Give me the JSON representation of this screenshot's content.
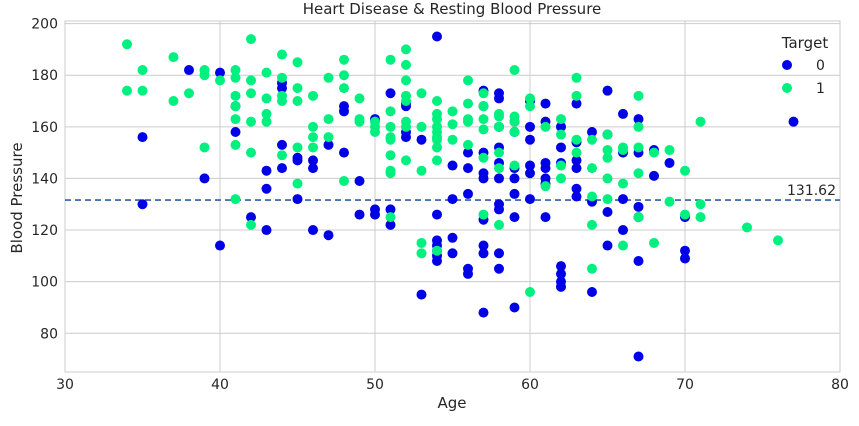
{
  "chart_data": {
    "type": "scatter",
    "title": "Heart Disease & Resting Blood Pressure",
    "xlabel": "Age",
    "ylabel": "Blood Pressure",
    "xlim": [
      30,
      80
    ],
    "ylim": [
      65,
      201
    ],
    "xticks": [
      30,
      40,
      50,
      60,
      70,
      80
    ],
    "yticks": [
      80,
      100,
      120,
      140,
      160,
      180,
      200
    ],
    "grid": true,
    "legend": {
      "title": "Target",
      "placement": "top-right"
    },
    "reference_line": {
      "y": 131.62,
      "label": "131.62",
      "style": "dashed",
      "color": "#4c72b0"
    },
    "series": [
      {
        "name": "0",
        "color": "#0000e6",
        "points": [
          [
            35,
            156
          ],
          [
            35,
            130
          ],
          [
            38,
            182
          ],
          [
            39,
            140
          ],
          [
            40,
            114
          ],
          [
            40,
            181
          ],
          [
            41,
            158
          ],
          [
            41,
            168
          ],
          [
            42,
            125
          ],
          [
            43,
            143
          ],
          [
            43,
            136
          ],
          [
            43,
            120
          ],
          [
            44,
            153
          ],
          [
            44,
            144
          ],
          [
            44,
            177
          ],
          [
            44,
            175
          ],
          [
            45,
            148
          ],
          [
            45,
            132
          ],
          [
            45,
            147
          ],
          [
            46,
            144
          ],
          [
            46,
            147
          ],
          [
            46,
            120
          ],
          [
            47,
            153
          ],
          [
            47,
            118
          ],
          [
            48,
            168
          ],
          [
            48,
            166
          ],
          [
            48,
            150
          ],
          [
            49,
            139
          ],
          [
            49,
            126
          ],
          [
            50,
            128
          ],
          [
            50,
            126
          ],
          [
            50,
            163
          ],
          [
            51,
            122
          ],
          [
            51,
            173
          ],
          [
            51,
            128
          ],
          [
            52,
            168
          ],
          [
            52,
            156
          ],
          [
            52,
            169
          ],
          [
            52,
            158
          ],
          [
            53,
            95
          ],
          [
            53,
            155
          ],
          [
            54,
            195
          ],
          [
            54,
            126
          ],
          [
            54,
            116
          ],
          [
            54,
            114
          ],
          [
            54,
            112
          ],
          [
            54,
            110
          ],
          [
            54,
            108
          ],
          [
            55,
            132
          ],
          [
            55,
            145
          ],
          [
            55,
            117
          ],
          [
            55,
            111
          ],
          [
            56,
            150
          ],
          [
            56,
            144
          ],
          [
            56,
            134
          ],
          [
            56,
            105
          ],
          [
            56,
            103
          ],
          [
            57,
            174
          ],
          [
            57,
            168
          ],
          [
            57,
            150
          ],
          [
            57,
            142
          ],
          [
            57,
            140
          ],
          [
            57,
            124
          ],
          [
            57,
            114
          ],
          [
            57,
            111
          ],
          [
            57,
            88
          ],
          [
            58,
            173
          ],
          [
            58,
            171
          ],
          [
            58,
            160
          ],
          [
            58,
            152
          ],
          [
            58,
            146
          ],
          [
            58,
            140
          ],
          [
            58,
            130
          ],
          [
            58,
            128
          ],
          [
            58,
            111
          ],
          [
            58,
            105
          ],
          [
            59,
            162
          ],
          [
            59,
            158
          ],
          [
            59,
            144
          ],
          [
            59,
            140
          ],
          [
            59,
            134
          ],
          [
            59,
            125
          ],
          [
            59,
            90
          ],
          [
            60,
            170
          ],
          [
            60,
            160
          ],
          [
            60,
            155
          ],
          [
            60,
            145
          ],
          [
            60,
            142
          ],
          [
            60,
            132
          ],
          [
            61,
            169
          ],
          [
            61,
            162
          ],
          [
            61,
            146
          ],
          [
            61,
            144
          ],
          [
            61,
            140
          ],
          [
            61,
            138
          ],
          [
            61,
            125
          ],
          [
            62,
            160
          ],
          [
            62,
            152
          ],
          [
            62,
            146
          ],
          [
            62,
            106
          ],
          [
            62,
            103
          ],
          [
            62,
            100
          ],
          [
            62,
            98
          ],
          [
            63,
            169
          ],
          [
            63,
            154
          ],
          [
            63,
            147
          ],
          [
            63,
            144
          ],
          [
            63,
            136
          ],
          [
            63,
            133
          ],
          [
            64,
            158
          ],
          [
            64,
            131
          ],
          [
            64,
            96
          ],
          [
            65,
            174
          ],
          [
            65,
            157
          ],
          [
            65,
            127
          ],
          [
            65,
            114
          ],
          [
            66,
            165
          ],
          [
            66,
            150
          ],
          [
            66,
            132
          ],
          [
            66,
            120
          ],
          [
            67,
            163
          ],
          [
            67,
            150
          ],
          [
            67,
            125
          ],
          [
            67,
            129
          ],
          [
            67,
            108
          ],
          [
            67,
            71
          ],
          [
            68,
            141
          ],
          [
            68,
            151
          ],
          [
            69,
            146
          ],
          [
            70,
            125
          ],
          [
            70,
            112
          ],
          [
            70,
            109
          ],
          [
            77,
            162
          ]
        ]
      },
      {
        "name": "1",
        "color": "#00f080",
        "points": [
          [
            34,
            192
          ],
          [
            34,
            174
          ],
          [
            35,
            182
          ],
          [
            35,
            174
          ],
          [
            37,
            187
          ],
          [
            37,
            170
          ],
          [
            38,
            173
          ],
          [
            39,
            182
          ],
          [
            39,
            152
          ],
          [
            39,
            180
          ],
          [
            40,
            178
          ],
          [
            41,
            182
          ],
          [
            41,
            179
          ],
          [
            41,
            172
          ],
          [
            41,
            168
          ],
          [
            41,
            163
          ],
          [
            41,
            153
          ],
          [
            41,
            132
          ],
          [
            42,
            194
          ],
          [
            42,
            178
          ],
          [
            42,
            173
          ],
          [
            42,
            162
          ],
          [
            42,
            150
          ],
          [
            42,
            122
          ],
          [
            43,
            181
          ],
          [
            43,
            171
          ],
          [
            43,
            165
          ],
          [
            43,
            162
          ],
          [
            44,
            188
          ],
          [
            44,
            179
          ],
          [
            44,
            172
          ],
          [
            44,
            170
          ],
          [
            44,
            149
          ],
          [
            45,
            185
          ],
          [
            45,
            175
          ],
          [
            45,
            170
          ],
          [
            45,
            152
          ],
          [
            45,
            138
          ],
          [
            46,
            172
          ],
          [
            46,
            160
          ],
          [
            46,
            156
          ],
          [
            46,
            152
          ],
          [
            47,
            179
          ],
          [
            47,
            163
          ],
          [
            47,
            156
          ],
          [
            48,
            186
          ],
          [
            48,
            180
          ],
          [
            48,
            175
          ],
          [
            48,
            139
          ],
          [
            49,
            171
          ],
          [
            49,
            163
          ],
          [
            49,
            162
          ],
          [
            50,
            162
          ],
          [
            50,
            160
          ],
          [
            50,
            158
          ],
          [
            51,
            186
          ],
          [
            51,
            166
          ],
          [
            51,
            160
          ],
          [
            51,
            156
          ],
          [
            51,
            155
          ],
          [
            51,
            149
          ],
          [
            51,
            143
          ],
          [
            51,
            142
          ],
          [
            51,
            125
          ],
          [
            52,
            190
          ],
          [
            52,
            184
          ],
          [
            52,
            178
          ],
          [
            52,
            172
          ],
          [
            52,
            170
          ],
          [
            52,
            162
          ],
          [
            52,
            160
          ],
          [
            52,
            147
          ],
          [
            53,
            173
          ],
          [
            53,
            160
          ],
          [
            53,
            143
          ],
          [
            53,
            115
          ],
          [
            53,
            111
          ],
          [
            54,
            170
          ],
          [
            54,
            165
          ],
          [
            54,
            163
          ],
          [
            54,
            160
          ],
          [
            54,
            158
          ],
          [
            54,
            156
          ],
          [
            54,
            155
          ],
          [
            54,
            152
          ],
          [
            54,
            147
          ],
          [
            54,
            112
          ],
          [
            55,
            166
          ],
          [
            55,
            161
          ],
          [
            55,
            155
          ],
          [
            56,
            178
          ],
          [
            56,
            169
          ],
          [
            56,
            163
          ],
          [
            56,
            162
          ],
          [
            56,
            153
          ],
          [
            57,
            173
          ],
          [
            57,
            168
          ],
          [
            57,
            163
          ],
          [
            57,
            159
          ],
          [
            57,
            148
          ],
          [
            57,
            126
          ],
          [
            58,
            165
          ],
          [
            58,
            164
          ],
          [
            58,
            160
          ],
          [
            58,
            150
          ],
          [
            58,
            144
          ],
          [
            58,
            122
          ],
          [
            59,
            182
          ],
          [
            59,
            164
          ],
          [
            59,
            162
          ],
          [
            59,
            158
          ],
          [
            59,
            145
          ],
          [
            60,
            171
          ],
          [
            60,
            168
          ],
          [
            60,
            96
          ],
          [
            61,
            160
          ],
          [
            61,
            137
          ],
          [
            62,
            163
          ],
          [
            62,
            157
          ],
          [
            62,
            145
          ],
          [
            62,
            140
          ],
          [
            63,
            179
          ],
          [
            63,
            172
          ],
          [
            63,
            155
          ],
          [
            63,
            150
          ],
          [
            64,
            155
          ],
          [
            64,
            144
          ],
          [
            64,
            133
          ],
          [
            64,
            122
          ],
          [
            64,
            105
          ],
          [
            65,
            157
          ],
          [
            65,
            151
          ],
          [
            65,
            148
          ],
          [
            65,
            140
          ],
          [
            65,
            132
          ],
          [
            66,
            152
          ],
          [
            66,
            151
          ],
          [
            66,
            138
          ],
          [
            66,
            114
          ],
          [
            67,
            172
          ],
          [
            67,
            160
          ],
          [
            67,
            152
          ],
          [
            67,
            142
          ],
          [
            67,
            125
          ],
          [
            68,
            115
          ],
          [
            68,
            150
          ],
          [
            69,
            151
          ],
          [
            69,
            131
          ],
          [
            70,
            143
          ],
          [
            70,
            126
          ],
          [
            71,
            162
          ],
          [
            71,
            130
          ],
          [
            71,
            125
          ],
          [
            74,
            121
          ],
          [
            76,
            116
          ]
        ]
      }
    ]
  }
}
